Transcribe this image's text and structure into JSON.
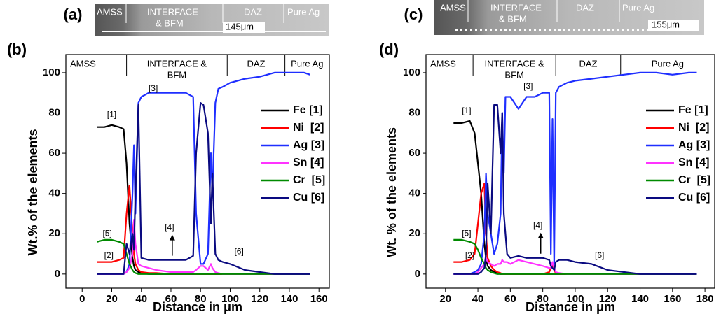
{
  "chart_data": [
    {
      "type": "line",
      "panel": "(b)",
      "ylabel": "Wt.% of the elements",
      "xlabel": "Distance in μm",
      "xlim": [
        -11,
        167
      ],
      "ylim": [
        -7,
        109
      ],
      "xticks": [
        0,
        20,
        40,
        60,
        80,
        100,
        120,
        140,
        160
      ],
      "yticks": [
        0,
        20,
        40,
        60,
        80,
        100
      ],
      "zones": [
        [
          "AMSS"
        ],
        [
          "INTERFACE &",
          "BFM"
        ],
        [
          "DAZ"
        ],
        [
          "Pure Ag"
        ]
      ],
      "zone_bounds": [
        30,
        98,
        137
      ],
      "legend": "right",
      "annotations": [
        {
          "text": "[1]",
          "x": 20,
          "y": 79
        },
        {
          "text": "[2]",
          "x": 18,
          "y": 9
        },
        {
          "text": "[3]",
          "x": 48,
          "y": 92
        },
        {
          "text": "[4]",
          "x": 59,
          "y": 23
        },
        {
          "text": "[5]",
          "x": 17,
          "y": 20
        },
        {
          "text": "[6]",
          "x": 106,
          "y": 11
        }
      ],
      "x": [
        10,
        15,
        20,
        25,
        28,
        30,
        32,
        34,
        35,
        36,
        38,
        40,
        45,
        50,
        60,
        70,
        75,
        77,
        80,
        82,
        85,
        87,
        88,
        90,
        92,
        95,
        100,
        110,
        120,
        130,
        140,
        150,
        154
      ],
      "series": [
        {
          "name": "Fe [1]",
          "color": "#000000",
          "values": [
            73,
            73,
            74,
            73,
            72,
            55,
            25,
            8,
            4,
            2,
            1,
            0.5,
            0,
            0,
            0,
            0,
            0,
            0,
            0,
            0,
            0,
            0,
            0,
            0,
            0,
            0,
            0,
            0,
            0,
            0,
            0,
            0,
            0
          ]
        },
        {
          "name": "Ni  [2]",
          "color": "#ff0000",
          "values": [
            6,
            6,
            6,
            7,
            8,
            30,
            44,
            20,
            10,
            5,
            2,
            1,
            0.5,
            0.5,
            0,
            0,
            0,
            0,
            0,
            0,
            0,
            0,
            0,
            0,
            0,
            0,
            0,
            0,
            0,
            0,
            0,
            0,
            0
          ]
        },
        {
          "name": "Ag [3]",
          "color": "#1f2fff",
          "values": [
            0,
            0,
            0,
            0,
            0,
            1,
            5,
            40,
            64,
            30,
            85,
            88,
            90,
            90,
            90,
            90,
            88,
            30,
            5,
            5,
            10,
            60,
            40,
            85,
            92,
            93,
            95,
            97,
            98,
            100,
            100,
            100,
            99
          ]
        },
        {
          "name": "Sn [4]",
          "color": "#ff33ff",
          "values": [
            0,
            0,
            0,
            0,
            0,
            1,
            3,
            10,
            27,
            15,
            5,
            4,
            3,
            2,
            1,
            1,
            1,
            2,
            4,
            4,
            2,
            5,
            3,
            1,
            0.5,
            0,
            0,
            0,
            0,
            0,
            0,
            0,
            0
          ]
        },
        {
          "name": "Cr  [5]",
          "color": "#008a00",
          "values": [
            16,
            17,
            17,
            16,
            15,
            10,
            5,
            2,
            1,
            0.5,
            0,
            0,
            0,
            0,
            0,
            0,
            0,
            0,
            0,
            0,
            0,
            0,
            0,
            0,
            0,
            0,
            0,
            0,
            0,
            0,
            0,
            0,
            0
          ]
        },
        {
          "name": "Cu [6]",
          "color": "#0a0a80",
          "values": [
            0,
            0,
            0,
            0,
            0,
            15,
            10,
            20,
            12,
            40,
            84,
            8,
            7,
            7,
            7,
            7,
            9,
            60,
            85,
            84,
            70,
            25,
            50,
            10,
            7,
            6,
            5,
            2,
            1,
            0,
            0,
            0,
            0
          ]
        }
      ]
    },
    {
      "type": "line",
      "panel": "(d)",
      "ylabel": "Wt. % of the elements",
      "xlabel": "Distance in μm",
      "xlim": [
        8,
        186
      ],
      "ylim": [
        -7,
        109
      ],
      "xticks": [
        20,
        40,
        60,
        80,
        100,
        120,
        140,
        160,
        180
      ],
      "yticks": [
        0,
        20,
        40,
        60,
        80,
        100
      ],
      "zones": [
        [
          "AMSS"
        ],
        [
          "INTERFACE &",
          "BFM"
        ],
        [
          "DAZ"
        ],
        [
          "Pure Ag"
        ]
      ],
      "zone_bounds": [
        37,
        88,
        128
      ],
      "legend": "right",
      "annotations": [
        {
          "text": "[1]",
          "x": 33,
          "y": 81
        },
        {
          "text": "[2]",
          "x": 35,
          "y": 9
        },
        {
          "text": "[3]",
          "x": 71,
          "y": 93
        },
        {
          "text": "[4]",
          "x": 77,
          "y": 24
        },
        {
          "text": "[5]",
          "x": 33,
          "y": 20
        },
        {
          "text": "[6]",
          "x": 115,
          "y": 9
        }
      ],
      "x": [
        25,
        30,
        35,
        38,
        40,
        42,
        44,
        45,
        46,
        48,
        50,
        52,
        54,
        55,
        56,
        57,
        58,
        60,
        65,
        70,
        75,
        80,
        84,
        85,
        86,
        87,
        88,
        90,
        95,
        100,
        110,
        120,
        130,
        140,
        150,
        160,
        170,
        175
      ],
      "series": [
        {
          "name": "Fe [1]",
          "color": "#000000",
          "values": [
            75,
            75,
            76,
            70,
            55,
            40,
            15,
            8,
            4,
            2,
            1,
            0.5,
            0,
            0,
            0,
            0,
            0,
            0,
            0,
            0,
            0,
            0,
            0,
            0,
            0,
            0,
            0,
            0,
            0,
            0,
            0,
            0,
            0,
            0,
            0,
            0,
            0,
            0
          ]
        },
        {
          "name": "Ni  [2]",
          "color": "#ff0000",
          "values": [
            6,
            6,
            7,
            10,
            25,
            40,
            45,
            20,
            8,
            4,
            2,
            1,
            0.5,
            0,
            0,
            0,
            0,
            0,
            0,
            0,
            0,
            0,
            1,
            3,
            5,
            2,
            0.5,
            0,
            0,
            0,
            0,
            0,
            0,
            0,
            0,
            0,
            0,
            0
          ]
        },
        {
          "name": "Ag [3]",
          "color": "#1f2fff",
          "values": [
            0,
            0,
            0,
            1,
            2,
            5,
            20,
            50,
            30,
            20,
            10,
            15,
            30,
            80,
            50,
            88,
            88,
            88,
            82,
            88,
            88,
            90,
            90,
            10,
            77,
            5,
            90,
            93,
            95,
            96,
            97,
            98,
            99,
            100,
            100,
            99,
            100,
            100
          ]
        },
        {
          "name": "Sn [4]",
          "color": "#ff33ff",
          "values": [
            0,
            0,
            0,
            0,
            1,
            3,
            5,
            8,
            6,
            5,
            4,
            5,
            5,
            7,
            6,
            6,
            6,
            5,
            7,
            6,
            5,
            4,
            3,
            3,
            6,
            3,
            1,
            0.5,
            0,
            0,
            0,
            0,
            0,
            0,
            0,
            0,
            0,
            0
          ]
        },
        {
          "name": "Cr  [5]",
          "color": "#008a00",
          "values": [
            17,
            17,
            16,
            15,
            12,
            8,
            5,
            3,
            2,
            1,
            0.5,
            0,
            0,
            0,
            0,
            0,
            0,
            0,
            0,
            0,
            0,
            0,
            0,
            0,
            0,
            0,
            0,
            0,
            0,
            0,
            0,
            0,
            0,
            0,
            0,
            0,
            0,
            0
          ]
        },
        {
          "name": "Cu [6]",
          "color": "#0a0a80",
          "values": [
            0,
            0,
            0,
            0,
            0,
            1,
            3,
            10,
            45,
            20,
            84,
            84,
            60,
            80,
            30,
            20,
            10,
            8,
            9,
            8,
            8,
            8,
            7,
            4,
            3,
            2,
            6,
            7,
            7,
            6,
            5,
            2,
            1,
            0,
            0,
            0,
            0,
            0
          ]
        }
      ]
    }
  ],
  "images": [
    {
      "panel": "(a)",
      "labels": [
        "AMSS",
        "INTERFACE",
        "& BFM",
        "DAZ",
        "Pure Ag"
      ],
      "scale": "145μm"
    },
    {
      "panel": "(c)",
      "labels": [
        "AMSS",
        "INTERFACE",
        "& BFM",
        "DAZ",
        "Pure Ag"
      ],
      "scale": "155μm"
    }
  ]
}
